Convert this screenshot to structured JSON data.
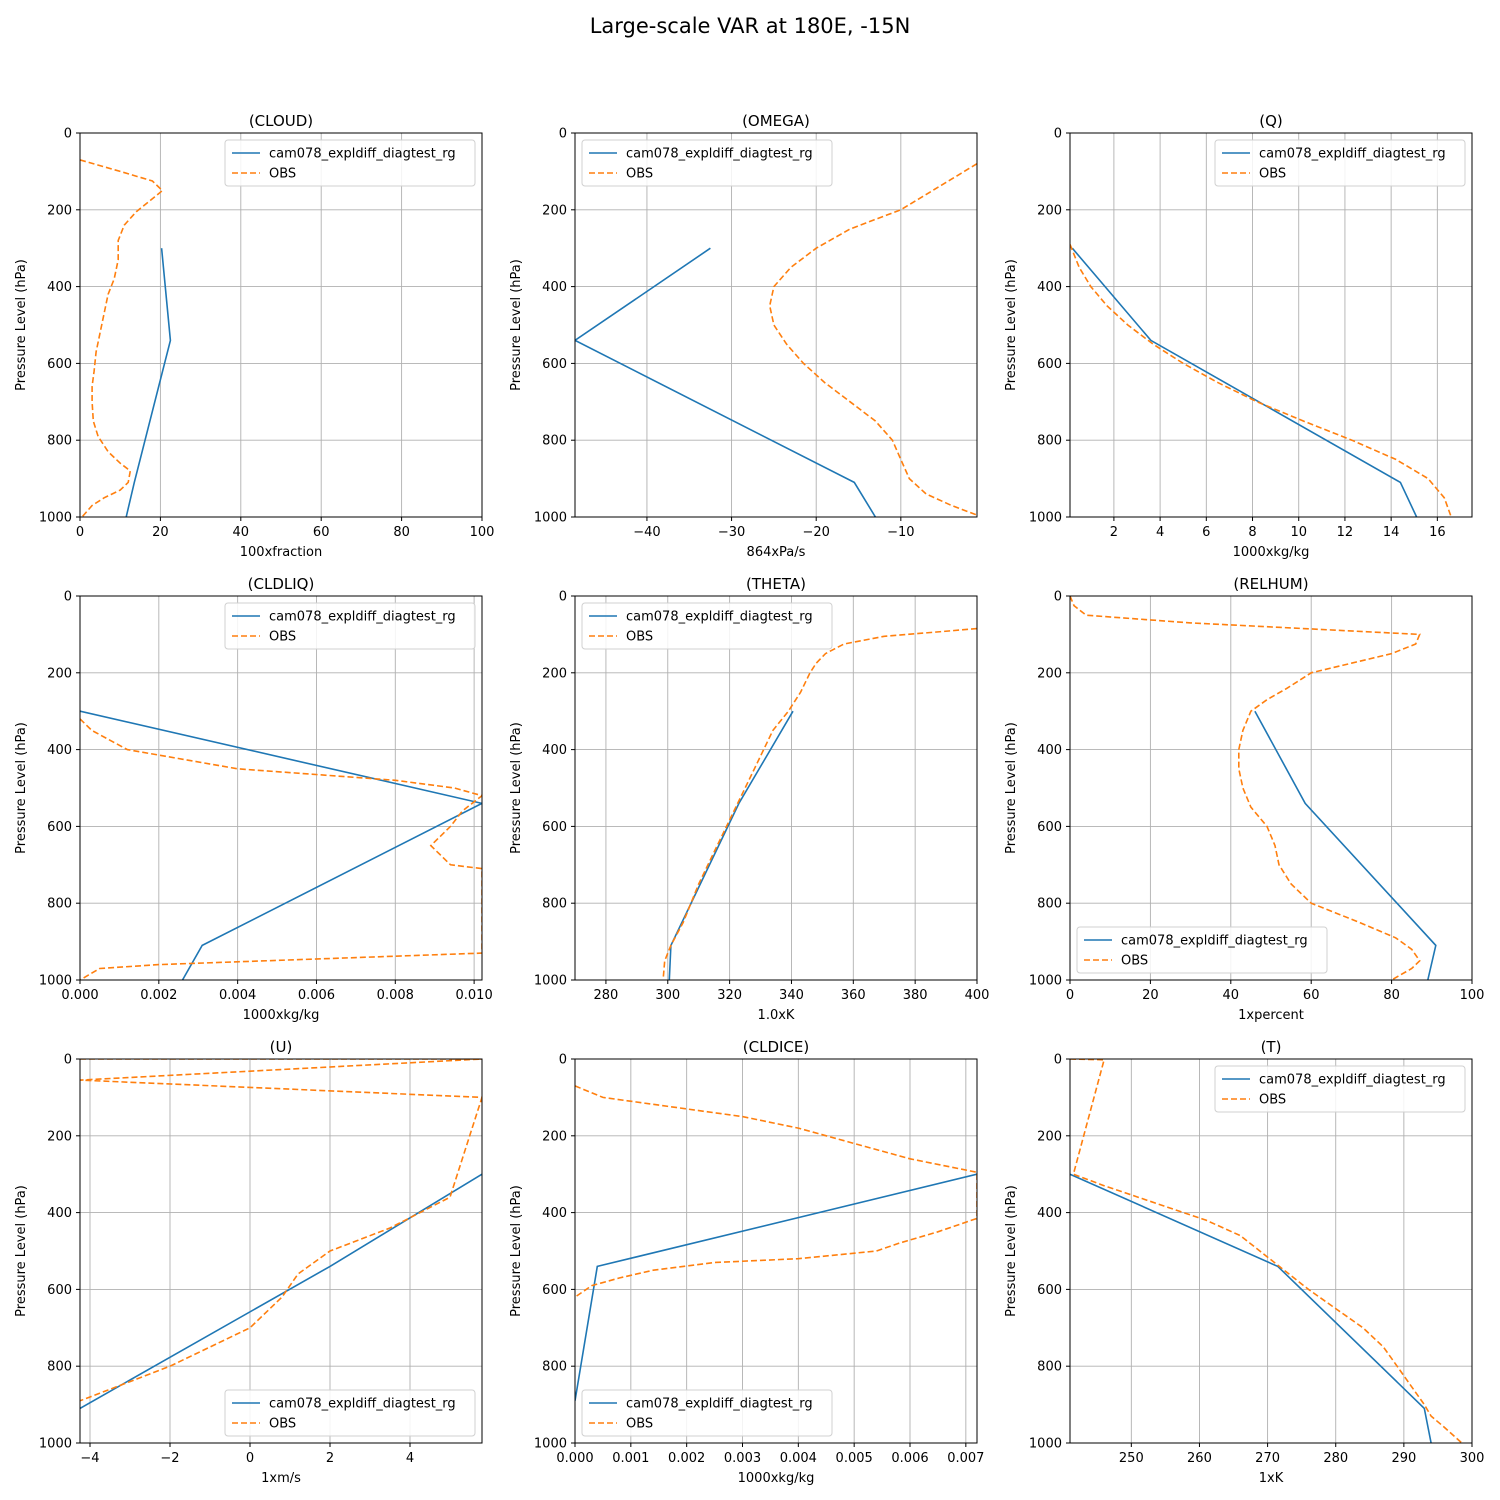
{
  "figure_title": "Large-scale VAR at 180E, -15N",
  "colors": {
    "model": "#1f77b4",
    "obs": "#ff7f0e",
    "grid": "#b0b0b0"
  },
  "chart_data": [
    {
      "type": "line",
      "title": "(CLOUD)",
      "xlabel": "100xfraction",
      "ylabel": "Pressure Level (hPa)",
      "xlim": [
        0,
        100
      ],
      "ylim": [
        1000,
        0
      ],
      "xticks": [
        0,
        20,
        40,
        60,
        80,
        100
      ],
      "yticks": [
        0,
        200,
        400,
        600,
        800,
        1000
      ],
      "grid": true,
      "legend_position": "upper right",
      "series": [
        {
          "name": "cam078_expldiff_diagtest_rg",
          "style": "solid",
          "x": [
            20.3,
            22.5,
            13.5,
            11.5
          ],
          "y": [
            300,
            540,
            910,
            1000
          ]
        },
        {
          "name": "OBS",
          "style": "dashed",
          "x": [
            0,
            10,
            18,
            20.5,
            17,
            14,
            11,
            9.5,
            9.5,
            8.5,
            7,
            6,
            5,
            4,
            3.5,
            3,
            3,
            3.3,
            4.5,
            7,
            10,
            12.5,
            12,
            10,
            6,
            3,
            0.5
          ],
          "y": [
            70,
            100,
            125,
            150,
            180,
            205,
            240,
            280,
            330,
            380,
            420,
            470,
            520,
            570,
            620,
            660,
            700,
            750,
            790,
            830,
            860,
            880,
            910,
            930,
            950,
            970,
            1000
          ]
        }
      ]
    },
    {
      "type": "line",
      "title": "(OMEGA)",
      "xlabel": "864xPa/s",
      "ylabel": "Pressure Level (hPa)",
      "xlim": [
        -48.5,
        -1
      ],
      "ylim": [
        1000,
        0
      ],
      "xticks": [
        -40,
        -30,
        -20,
        -10
      ],
      "yticks": [
        0,
        200,
        400,
        600,
        800,
        1000
      ],
      "grid": true,
      "legend_position": "upper left",
      "series": [
        {
          "name": "cam078_expldiff_diagtest_rg",
          "style": "solid",
          "x": [
            -32.5,
            -48.5,
            -15.5,
            -13
          ],
          "y": [
            300,
            540,
            910,
            1000
          ]
        },
        {
          "name": "OBS",
          "style": "dashed",
          "x": [
            -1,
            -4,
            -7,
            -10,
            -13,
            -16,
            -20,
            -23,
            -25,
            -25.5,
            -25,
            -23.5,
            -21.5,
            -19,
            -16,
            -13,
            -11,
            -10,
            -9,
            -7,
            -4,
            -1
          ],
          "y": [
            80,
            120,
            160,
            200,
            225,
            250,
            300,
            350,
            400,
            450,
            500,
            550,
            600,
            650,
            700,
            750,
            800,
            850,
            900,
            940,
            970,
            995
          ]
        }
      ]
    },
    {
      "type": "line",
      "title": "(Q)",
      "xlabel": "1000xkg/kg",
      "ylabel": "Pressure Level (hPa)",
      "xlim": [
        0.1,
        17.5
      ],
      "ylim": [
        1000,
        0
      ],
      "xticks": [
        2,
        4,
        6,
        8,
        10,
        12,
        14,
        16
      ],
      "yticks": [
        0,
        200,
        400,
        600,
        800,
        1000
      ],
      "grid": true,
      "legend_position": "upper right",
      "series": [
        {
          "name": "cam078_expldiff_diagtest_rg",
          "style": "solid",
          "x": [
            0.2,
            3.6,
            14.4,
            15.1
          ],
          "y": [
            300,
            540,
            910,
            1000
          ]
        },
        {
          "name": "OBS",
          "style": "dashed",
          "x": [
            0.1,
            0.5,
            1,
            1.7,
            2.6,
            3.7,
            5,
            6.5,
            8.2,
            10.2,
            12.3,
            14.2,
            15.6,
            16.3,
            16.6
          ],
          "y": [
            290,
            350,
            400,
            450,
            500,
            550,
            600,
            650,
            700,
            750,
            800,
            850,
            900,
            950,
            1000
          ]
        }
      ]
    },
    {
      "type": "line",
      "title": "(CLDLIQ)",
      "xlabel": "1000xkg/kg",
      "ylabel": "Pressure Level (hPa)",
      "xlim": [
        0,
        0.0102
      ],
      "ylim": [
        1000,
        0
      ],
      "xticks": [
        0.0,
        0.002,
        0.004,
        0.006,
        0.008,
        0.01
      ],
      "tick_labels": [
        "0.000",
        "0.002",
        "0.004",
        "0.006",
        "0.008",
        "0.010"
      ],
      "yticks": [
        0,
        200,
        400,
        600,
        800,
        1000
      ],
      "grid": true,
      "legend_position": "upper right",
      "series": [
        {
          "name": "cam078_expldiff_diagtest_rg",
          "style": "solid",
          "x": [
            0,
            0.0102,
            0.0031,
            0.0026
          ],
          "y": [
            300,
            540,
            910,
            1000
          ]
        },
        {
          "name": "OBS",
          "style": "dashed",
          "x": [
            0,
            0.0003,
            0.0012,
            0.004,
            0.008,
            0.0095,
            0.0102,
            0.0097,
            0.0094,
            0.0089,
            0.0094,
            0.0102,
            0.0102,
            0.002,
            0.0005,
            0
          ],
          "y": [
            320,
            350,
            400,
            450,
            480,
            500,
            520,
            560,
            600,
            650,
            700,
            710,
            930,
            960,
            970,
            1000
          ]
        }
      ]
    },
    {
      "type": "line",
      "title": "(THETA)",
      "xlabel": "1.0xK",
      "ylabel": "Pressure Level (hPa)",
      "xlim": [
        270,
        400
      ],
      "ylim": [
        1000,
        0
      ],
      "xticks": [
        280,
        300,
        320,
        340,
        360,
        380,
        400
      ],
      "yticks": [
        0,
        200,
        400,
        600,
        800,
        1000
      ],
      "grid": true,
      "legend_position": "upper left",
      "series": [
        {
          "name": "cam078_expldiff_diagtest_rg",
          "style": "solid",
          "x": [
            340.5,
            323,
            301,
            300.5
          ],
          "y": [
            300,
            540,
            910,
            1000
          ]
        },
        {
          "name": "OBS",
          "style": "dashed",
          "x": [
            400,
            385,
            370,
            357,
            351,
            348,
            346,
            343,
            339,
            334,
            328,
            322,
            316,
            310,
            305,
            301,
            299,
            298.5
          ],
          "y": [
            85,
            95,
            105,
            125,
            150,
            175,
            200,
            250,
            300,
            350,
            450,
            550,
            650,
            750,
            850,
            910,
            950,
            1000
          ]
        }
      ]
    },
    {
      "type": "line",
      "title": "(RELHUM)",
      "xlabel": "1xpercent",
      "ylabel": "Pressure Level (hPa)",
      "xlim": [
        0,
        100
      ],
      "ylim": [
        1000,
        0
      ],
      "xticks": [
        0,
        20,
        40,
        60,
        80,
        100
      ],
      "yticks": [
        0,
        200,
        400,
        600,
        800,
        1000
      ],
      "grid": true,
      "legend_position": "lower left",
      "series": [
        {
          "name": "cam078_expldiff_diagtest_rg",
          "style": "solid",
          "x": [
            46,
            58.5,
            91,
            89
          ],
          "y": [
            300,
            540,
            910,
            1000
          ]
        },
        {
          "name": "OBS",
          "style": "dashed",
          "x": [
            0,
            1,
            4,
            30,
            87,
            86,
            80,
            70,
            60,
            54,
            49,
            45,
            43,
            42,
            42,
            43,
            45,
            49,
            51,
            52,
            55,
            60,
            72,
            81,
            85,
            87,
            85,
            80
          ],
          "y": [
            0,
            25,
            50,
            70,
            100,
            125,
            150,
            175,
            200,
            240,
            270,
            300,
            350,
            400,
            450,
            500,
            550,
            600,
            650,
            700,
            750,
            800,
            850,
            890,
            920,
            950,
            970,
            1000
          ]
        }
      ]
    },
    {
      "type": "line",
      "title": "(U)",
      "xlabel": "1xm/s",
      "ylabel": "Pressure Level (hPa)",
      "xlim": [
        -4.25,
        5.8
      ],
      "ylim": [
        1000,
        0
      ],
      "xticks": [
        -4,
        -2,
        0,
        2,
        4
      ],
      "yticks": [
        0,
        200,
        400,
        600,
        800,
        1000
      ],
      "grid": true,
      "legend_position": "lower right",
      "series": [
        {
          "name": "cam078_expldiff_diagtest_rg",
          "style": "solid",
          "x": [
            5.8,
            2,
            -4.25
          ],
          "y": [
            300,
            540,
            910
          ]
        },
        {
          "name": "OBS",
          "style": "dashed",
          "x": [
            -4.25,
            5.8,
            -4.25,
            5.8,
            5.0,
            3.5,
            2.0,
            1.2,
            0.8,
            0.4,
            0,
            -1,
            -2,
            -3,
            -4.25
          ],
          "y": [
            0,
            0,
            55,
            100,
            360,
            440,
            500,
            560,
            620,
            660,
            700,
            750,
            800,
            840,
            890
          ]
        }
      ]
    },
    {
      "type": "line",
      "title": "(CLDICE)",
      "xlabel": "1000xkg/kg",
      "ylabel": "Pressure Level (hPa)",
      "xlim": [
        0,
        0.0072
      ],
      "ylim": [
        1000,
        0
      ],
      "xticks": [
        0.0,
        0.001,
        0.002,
        0.003,
        0.004,
        0.005,
        0.006,
        0.007
      ],
      "tick_labels": [
        "0.000",
        "0.001",
        "0.002",
        "0.003",
        "0.004",
        "0.005",
        "0.006",
        "0.007"
      ],
      "yticks": [
        0,
        200,
        400,
        600,
        800,
        1000
      ],
      "grid": true,
      "legend_position": "lower left",
      "series": [
        {
          "name": "cam078_expldiff_diagtest_rg",
          "style": "solid",
          "x": [
            0.0072,
            0.0004,
            0
          ],
          "y": [
            300,
            540,
            890
          ]
        },
        {
          "name": "OBS",
          "style": "dashed",
          "x": [
            0,
            0.0005,
            0.0015,
            0.003,
            0.004,
            0.005,
            0.006,
            0.0072,
            0.0072,
            0.0065,
            0.0058,
            0.0054,
            0.004,
            0.0025,
            0.0014,
            0.0008,
            0.0003,
            0
          ],
          "y": [
            70,
            100,
            120,
            150,
            180,
            220,
            260,
            295,
            415,
            450,
            480,
            500,
            520,
            530,
            550,
            570,
            590,
            620
          ]
        }
      ]
    },
    {
      "type": "line",
      "title": "(T)",
      "xlabel": "1xK",
      "ylabel": "Pressure Level (hPa)",
      "xlim": [
        241,
        300
      ],
      "ylim": [
        1000,
        0
      ],
      "xticks": [
        250,
        260,
        270,
        280,
        290,
        300
      ],
      "yticks": [
        0,
        200,
        400,
        600,
        800,
        1000
      ],
      "grid": true,
      "legend_position": "upper right",
      "series": [
        {
          "name": "cam078_expldiff_diagtest_rg",
          "style": "solid",
          "x": [
            241,
            271.5,
            293,
            294
          ],
          "y": [
            300,
            540,
            910,
            1000
          ]
        },
        {
          "name": "OBS",
          "style": "dashed",
          "x": [
            241,
            246,
            241.5,
            246,
            251,
            256,
            261,
            266,
            271,
            276,
            280,
            284,
            287,
            289,
            291,
            293,
            294,
            296,
            298.5
          ],
          "y": [
            0,
            2,
            300,
            330,
            360,
            390,
            420,
            460,
            530,
            600,
            650,
            700,
            750,
            800,
            850,
            900,
            930,
            960,
            1000
          ]
        }
      ]
    }
  ]
}
